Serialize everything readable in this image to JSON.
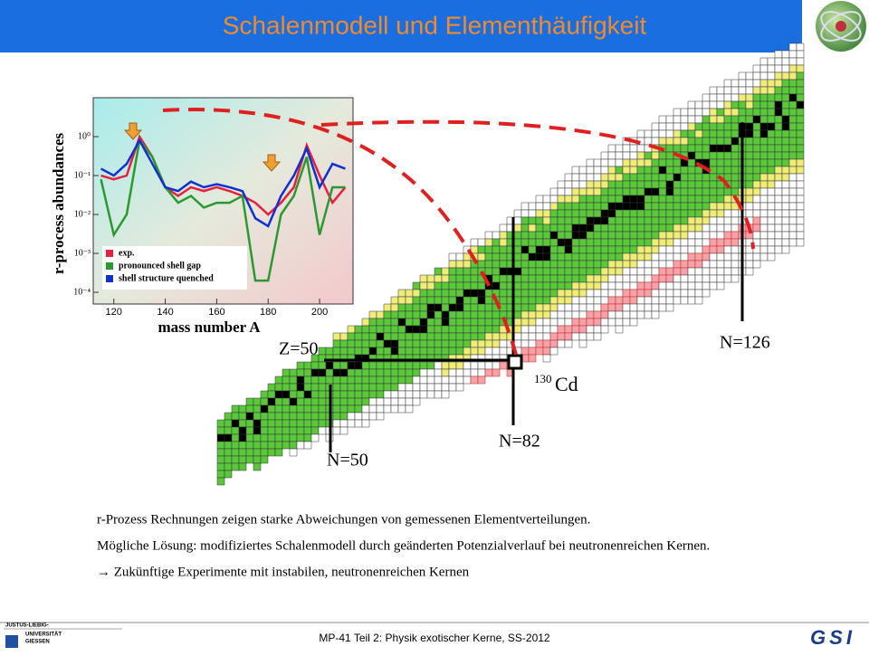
{
  "header": {
    "title": "Schalenmodell und Elementhäufigkeit"
  },
  "chart_data": {
    "type": "line",
    "x": [
      115,
      120,
      125,
      130,
      135,
      140,
      145,
      150,
      155,
      160,
      165,
      170,
      175,
      180,
      185,
      190,
      195,
      200,
      205,
      210
    ],
    "series": [
      {
        "name": "exp.",
        "color": "#e8203c",
        "values": [
          0.1,
          0.08,
          0.1,
          1.0,
          0.3,
          0.05,
          0.03,
          0.05,
          0.04,
          0.05,
          0.04,
          0.03,
          0.02,
          0.01,
          0.02,
          0.05,
          0.6,
          0.1,
          0.02,
          0.05
        ]
      },
      {
        "name": "pronounced shell gap",
        "color": "#2a9a30",
        "values": [
          0.08,
          0.003,
          0.01,
          0.8,
          0.3,
          0.05,
          0.02,
          0.03,
          0.015,
          0.02,
          0.02,
          0.03,
          0.0002,
          0.0002,
          0.01,
          0.03,
          0.3,
          0.003,
          0.05,
          0.05
        ]
      },
      {
        "name": "shell structure quenched",
        "color": "#1030d0",
        "values": [
          0.15,
          0.1,
          0.2,
          0.8,
          0.2,
          0.05,
          0.04,
          0.07,
          0.05,
          0.06,
          0.05,
          0.04,
          0.008,
          0.005,
          0.03,
          0.1,
          0.5,
          0.05,
          0.2,
          0.15
        ]
      }
    ],
    "xlim": [
      112,
      213
    ],
    "ylim": [
      5e-05,
      10
    ],
    "log_y": true,
    "xticks": [
      120,
      140,
      160,
      180,
      200
    ],
    "yticks": [
      {
        "value": 1,
        "label": "10⁰"
      },
      {
        "value": 0.1,
        "label": "10⁻¹"
      },
      {
        "value": 0.01,
        "label": "10⁻²"
      },
      {
        "value": 0.001,
        "label": "10⁻³"
      },
      {
        "value": 0.0001,
        "label": "10⁻⁴"
      }
    ],
    "x_label": "mass number A",
    "y_label": "r-process abundances",
    "legend": "lower left"
  },
  "diagram": {
    "labels": {
      "z50": "Z=50",
      "n126": "N=126",
      "n82": "N=82",
      "n50": "N=50",
      "isotope_mass": "130",
      "isotope": "Cd"
    }
  },
  "body": {
    "lines": [
      "r-Prozess Rechnungen zeigen starke Abweichungen von gemessenen Elementverteilungen.",
      "Mögliche Lösung: modifiziertes Schalenmodell durch geänderten Potenzialverlauf bei neutronenreichen Kernen.",
      "→ Zukünftige Experimente mit instabilen, neutronenreichen Kernen"
    ]
  },
  "footer": {
    "text": "MP-41 Teil 2: Physik exotischer Kerne, SS-2012",
    "university": [
      "JUSTUS-LIEBIG-",
      "UNIVERSITÄT",
      "GIESSEN"
    ],
    "logo": "GSI"
  }
}
